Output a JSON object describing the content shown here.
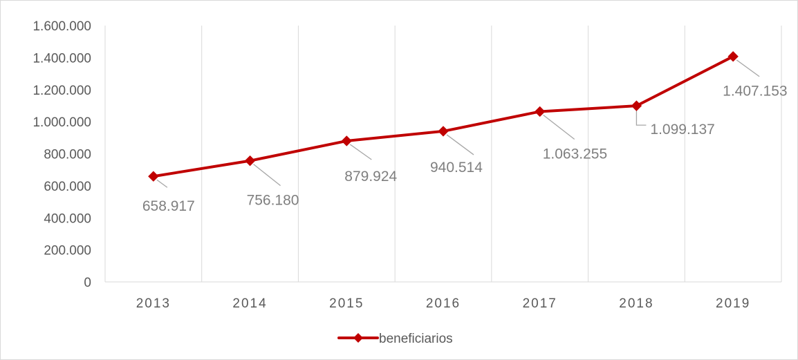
{
  "chart_data": {
    "type": "line",
    "title": "",
    "xlabel": "",
    "ylabel": "",
    "categories": [
      "2013",
      "2014",
      "2015",
      "2016",
      "2017",
      "2018",
      "2019"
    ],
    "series": [
      {
        "name": "beneficiarios",
        "values": [
          658917,
          756180,
          879924,
          940514,
          1063255,
          1099137,
          1407153
        ],
        "data_labels": [
          "658.917",
          "756.180",
          "879.924",
          "940.514",
          "1.063.255",
          "1.099.137",
          "1.407.153"
        ],
        "color": "#c00000"
      }
    ],
    "ylim": [
      0,
      1600000
    ],
    "yticks": [
      0,
      200000,
      400000,
      600000,
      800000,
      1000000,
      1200000,
      1400000,
      1600000
    ],
    "ytick_labels": [
      "0",
      "200.000",
      "400.000",
      "600.000",
      "800.000",
      "1.000.000",
      "1.200.000",
      "1.400.000",
      "1.600.000"
    ],
    "grid": "vertical",
    "legend_position": "bottom",
    "colors": {
      "gridline": "#d9d9d9",
      "leader_line": "#a6a6a6",
      "frame": "#d9d9d9"
    }
  }
}
